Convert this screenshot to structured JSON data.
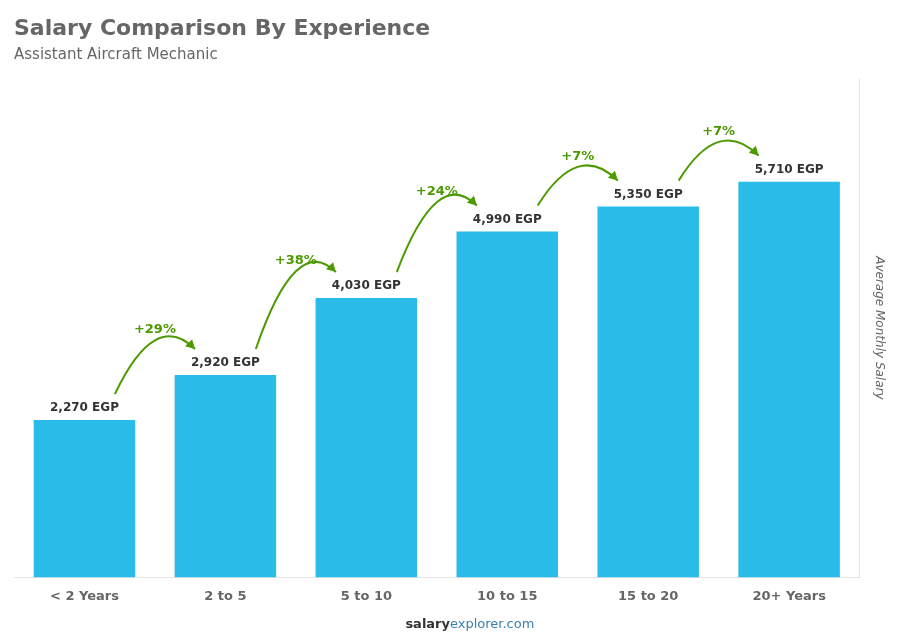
{
  "chart_data": {
    "type": "bar",
    "title": "Salary Comparison By Experience",
    "subtitle": "Assistant Aircraft Mechanic",
    "categories": [
      "< 2 Years",
      "2 to 5",
      "5 to 10",
      "10 to 15",
      "15 to 20",
      "20+ Years"
    ],
    "values": [
      2270,
      2920,
      4030,
      4990,
      5350,
      5710
    ],
    "value_labels": [
      "2,270 EGP",
      "2,920 EGP",
      "4,030 EGP",
      "4,990 EGP",
      "5,350 EGP",
      "5,710 EGP"
    ],
    "data_labels": true,
    "color": "#29bce8",
    "ylim": [
      0,
      7200
    ],
    "y_label": "Average Monthly Salary",
    "tick_labels": "x",
    "grid": false,
    "annotations": [
      "+29%",
      "+38%",
      "+24%",
      "+7%",
      "+7%"
    ],
    "watermark": [
      "salary",
      "explorer.com"
    ]
  }
}
